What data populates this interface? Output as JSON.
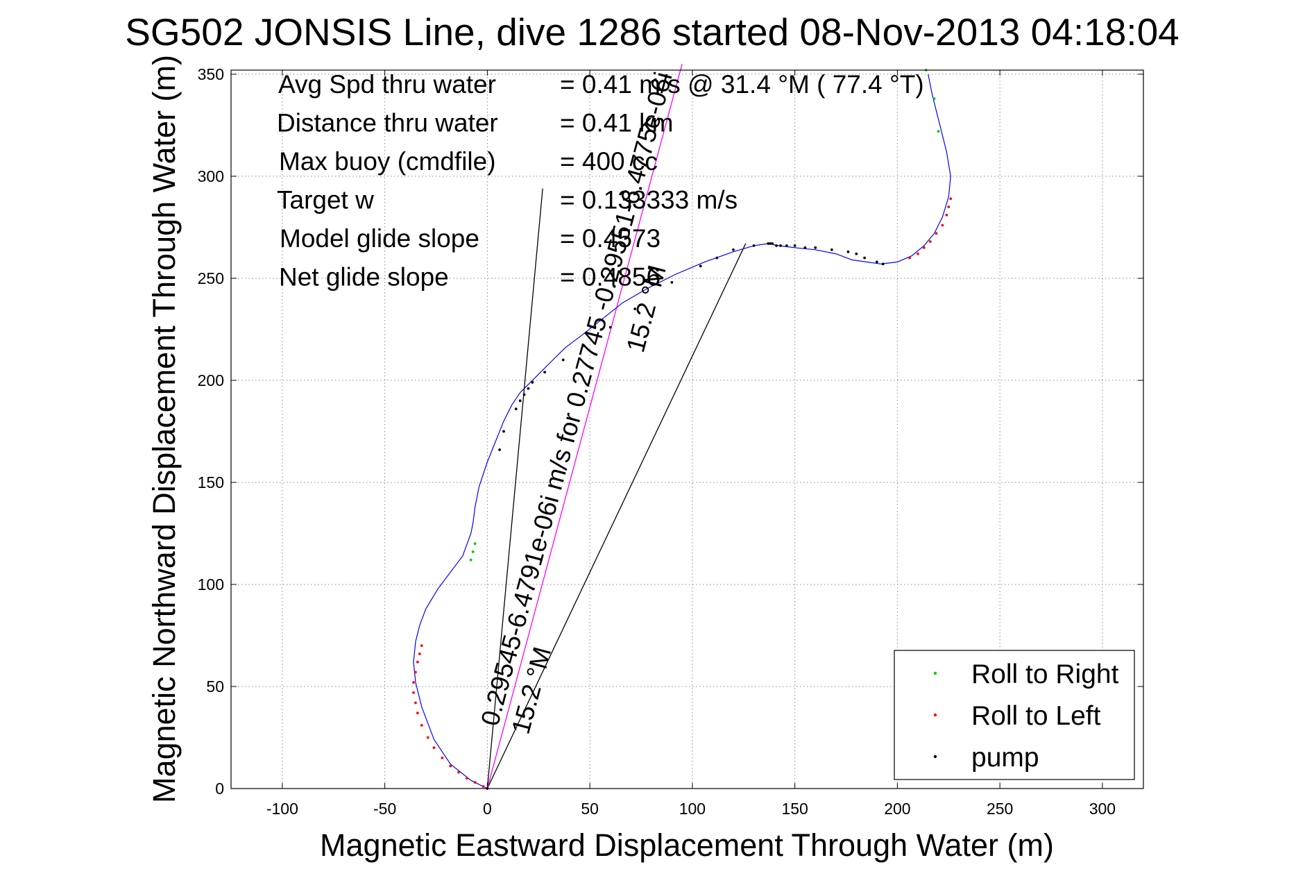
{
  "chart_data": {
    "type": "line",
    "title": "SG502 JONSIS Line, dive 1286 started 08-Nov-2013 04:18:04",
    "xlabel": "Magnetic Eastward Displacement Through Water (m)",
    "ylabel": "Magnetic Northward Displacement Through Water (m)",
    "xlim": [
      -125,
      320
    ],
    "ylim": [
      0,
      352
    ],
    "xticks": [
      -100,
      -50,
      0,
      50,
      100,
      150,
      200,
      250,
      300
    ],
    "yticks": [
      0,
      50,
      100,
      150,
      200,
      250,
      300,
      350
    ],
    "grid": true,
    "legend_position": "bottom-right",
    "stats": [
      {
        "label": "Avg Spd thru water",
        "value": "=  0.41 m/s @  31.4 °M ( 77.4 °T)"
      },
      {
        "label": "Distance thru water",
        "value": "=  0.41 km"
      },
      {
        "label": "Max buoy (cmdfile)",
        "value": "= 400 cc"
      },
      {
        "label": "Target w",
        "value": "= 0.133333 m/s"
      },
      {
        "label": "Model glide slope",
        "value": "= 0.4573"
      },
      {
        "label": "Net glide slope",
        "value": "= 0.4856"
      }
    ],
    "track": {
      "color": "#0000ff",
      "x": [
        0,
        -8,
        -18,
        -26,
        -32,
        -35,
        -36,
        -35,
        -33,
        -30,
        -24,
        -18,
        -12,
        -8,
        -7,
        -6,
        -4,
        0,
        4,
        8,
        12,
        16,
        20,
        26,
        32,
        38,
        46,
        56,
        66,
        78,
        92,
        106,
        120,
        130,
        137,
        142,
        150,
        160,
        170,
        178,
        185,
        192,
        200,
        207,
        213,
        218,
        222,
        225,
        226,
        224,
        220,
        217,
        215
      ],
      "y": [
        0,
        4,
        12,
        24,
        40,
        52,
        62,
        72,
        80,
        88,
        98,
        106,
        114,
        125,
        130,
        138,
        148,
        160,
        170,
        180,
        188,
        194,
        198,
        204,
        210,
        216,
        222,
        230,
        238,
        245,
        252,
        258,
        263,
        266,
        267,
        266,
        265,
        264,
        262,
        259,
        258,
        257,
        258,
        261,
        266,
        272,
        280,
        290,
        300,
        312,
        328,
        340,
        350
      ]
    },
    "direction_lines": [
      {
        "x": [
          0,
          27
        ],
        "y": [
          0,
          294
        ],
        "color": "#000000"
      },
      {
        "x": [
          0,
          126
        ],
        "y": [
          0,
          267
        ],
        "color": "#000000"
      },
      {
        "x": [
          0,
          95
        ],
        "y": [
          0,
          355
        ],
        "color": "#ff00ff"
      }
    ],
    "line_annotations": [
      {
        "text": "0.29545-6.4791e-06i m/s for 0.27745 -0.29551-6.4775e-06i",
        "x": 5,
        "y": 30,
        "rotation": -75
      },
      {
        "text": "15.2 °M",
        "x": 20,
        "y": 26,
        "rotation": -75
      },
      {
        "text": "15.2 °M",
        "x": 76,
        "y": 213,
        "rotation": -75
      }
    ],
    "series": [
      {
        "name": "Roll to Right",
        "marker": "point",
        "color": "#00cc00",
        "x": [
          -8,
          -7,
          -6,
          214,
          218,
          220
        ],
        "y": [
          112,
          116,
          120,
          352,
          338,
          322
        ]
      },
      {
        "name": "Roll to Left",
        "marker": "point",
        "color": "#ff0000",
        "x": [
          -2,
          -6,
          -10,
          -14,
          -18,
          -22,
          -26,
          -29,
          -32,
          -34,
          -35,
          -36,
          -36,
          -35,
          -34,
          -33,
          -32,
          206,
          210,
          213,
          216,
          219,
          222,
          224,
          225,
          226
        ],
        "y": [
          1,
          3,
          5,
          8,
          11,
          15,
          20,
          25,
          31,
          37,
          42,
          47,
          52,
          57,
          62,
          66,
          70,
          260,
          262,
          265,
          268,
          272,
          276,
          281,
          285,
          289
        ]
      },
      {
        "name": "pump",
        "marker": "point",
        "color": "#000000",
        "x": [
          0,
          6,
          8,
          14,
          16,
          18,
          20,
          22,
          28,
          37,
          47,
          60,
          72,
          90,
          104,
          112,
          120,
          130,
          137,
          138,
          139,
          141,
          143,
          146,
          150,
          155,
          160,
          168,
          176,
          180,
          184,
          190,
          193
        ],
        "y": [
          0,
          166,
          175,
          186,
          190,
          193,
          196,
          199,
          204,
          210,
          217,
          226,
          235,
          248,
          256,
          260,
          264,
          266,
          267,
          267,
          267,
          266,
          266,
          266,
          266,
          265,
          265,
          264,
          263,
          262,
          260,
          258,
          257
        ]
      }
    ]
  }
}
